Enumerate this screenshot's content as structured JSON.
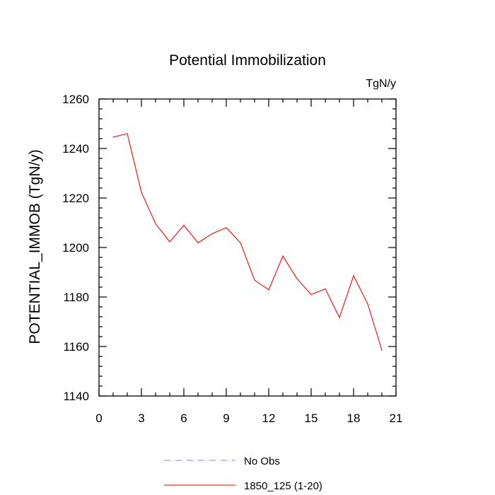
{
  "chart_data": {
    "type": "line",
    "title": "Potential Immobilization",
    "units_label": "TgN/y",
    "xlabel": "",
    "ylabel": "POTENTIAL_IMMOB  (TgN/y)",
    "xlim": [
      0,
      21
    ],
    "ylim": [
      1140,
      1260
    ],
    "x_ticks": [
      0,
      3,
      6,
      9,
      12,
      15,
      18,
      21
    ],
    "y_ticks": [
      1140,
      1160,
      1180,
      1200,
      1220,
      1240,
      1260
    ],
    "grid": false,
    "legend_position": "bottom",
    "series": [
      {
        "name": "1850_125 (1-20)",
        "color": "#ff0000",
        "line_style": "solid",
        "x": [
          1,
          2,
          3,
          4,
          5,
          6,
          7,
          8,
          9,
          10,
          11,
          12,
          13,
          14,
          15,
          16,
          17,
          18,
          19,
          20
        ],
        "values": [
          1244.6,
          1246.0,
          1222.3,
          1209.6,
          1202.3,
          1209.0,
          1201.9,
          1205.6,
          1208.0,
          1201.9,
          1186.8,
          1182.9,
          1196.5,
          1187.4,
          1181.0,
          1183.3,
          1171.7,
          1188.6,
          1177.2,
          1158.5
        ]
      }
    ],
    "legend": [
      {
        "label": "No Obs",
        "color": "#8080ff",
        "line_style": "dashed"
      },
      {
        "label": "1850_125 (1-20)",
        "color": "#ff0000",
        "line_style": "solid"
      }
    ]
  }
}
